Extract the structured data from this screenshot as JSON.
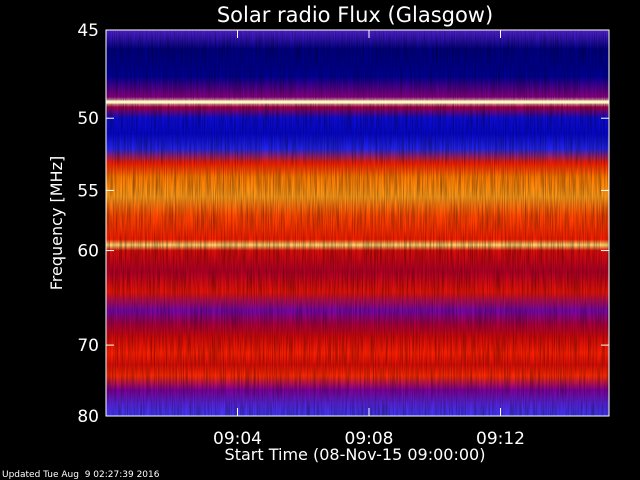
{
  "chart_data": {
    "type": "heatmap",
    "title": "Solar radio Flux (Glasgow)",
    "ylabel": "Frequency [MHz]",
    "xlabel": "Start Time (08-Nov-15 09:00:00)",
    "footer": "Updated Tue Aug  9 02:27:39 2016",
    "y_axis": {
      "unit": "MHz",
      "ylim": [
        45,
        80
      ],
      "inverted": true,
      "ticks": [
        45,
        50,
        55,
        60,
        70,
        80
      ],
      "tick_labels": [
        "45",
        "50",
        "55",
        "60",
        "70",
        "80"
      ]
    },
    "x_axis": {
      "unit": "minutes after 09:00",
      "xlim": [
        0,
        15.3
      ],
      "ticks": [
        4,
        8,
        12
      ],
      "tick_labels": [
        "09:04",
        "09:08",
        "09:12"
      ]
    },
    "colormap": [
      "#000040",
      "#0000c8",
      "#3c3cff",
      "#8000a0",
      "#c00010",
      "#ff2000",
      "#ff7a00",
      "#ffd040",
      "#fff6c0"
    ],
    "intensity_profile": [
      {
        "freq": 45.0,
        "level": 0.3
      },
      {
        "freq": 46.0,
        "level": 0.06
      },
      {
        "freq": 47.5,
        "level": 0.08
      },
      {
        "freq": 48.7,
        "level": 0.4
      },
      {
        "freq": 49.0,
        "level": 1.0
      },
      {
        "freq": 49.3,
        "level": 0.45
      },
      {
        "freq": 50.0,
        "level": 0.15
      },
      {
        "freq": 51.0,
        "level": 0.14
      },
      {
        "freq": 52.0,
        "level": 0.2
      },
      {
        "freq": 53.0,
        "level": 0.62
      },
      {
        "freq": 54.0,
        "level": 0.75
      },
      {
        "freq": 55.5,
        "level": 0.8
      },
      {
        "freq": 57.0,
        "level": 0.68
      },
      {
        "freq": 59.0,
        "level": 0.62
      },
      {
        "freq": 59.5,
        "level": 0.92
      },
      {
        "freq": 60.0,
        "level": 0.55
      },
      {
        "freq": 62.0,
        "level": 0.48
      },
      {
        "freq": 64.0,
        "level": 0.58
      },
      {
        "freq": 66.0,
        "level": 0.36
      },
      {
        "freq": 67.5,
        "level": 0.46
      },
      {
        "freq": 69.0,
        "level": 0.54
      },
      {
        "freq": 71.0,
        "level": 0.62
      },
      {
        "freq": 72.5,
        "level": 0.56
      },
      {
        "freq": 74.0,
        "level": 0.64
      },
      {
        "freq": 76.0,
        "level": 0.38
      },
      {
        "freq": 78.0,
        "level": 0.3
      },
      {
        "freq": 80.0,
        "level": 0.26
      }
    ]
  }
}
